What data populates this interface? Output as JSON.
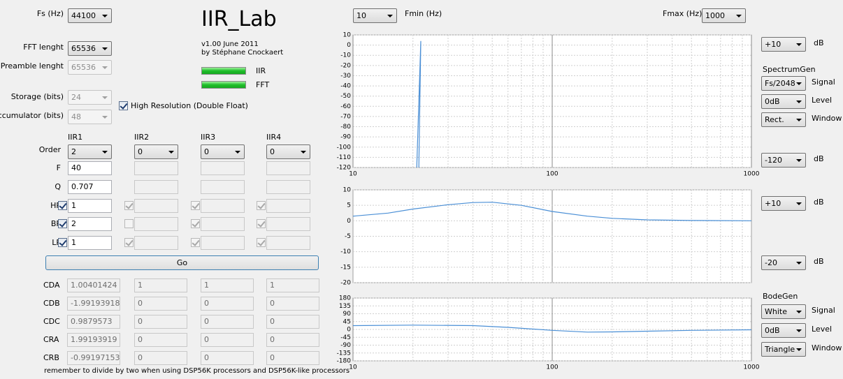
{
  "header": {
    "title": "IIR_Lab",
    "version": "v1.00 June 2011",
    "author": "by Stéphane Cnockaert",
    "indicators": [
      "IIR",
      "FFT"
    ]
  },
  "controls": {
    "fs": {
      "label": "Fs (Hz)",
      "value": "44100",
      "enabled": true
    },
    "fft_length": {
      "label": "FFT lenght",
      "value": "65536",
      "enabled": true
    },
    "preamble_length": {
      "label": "Preamble lenght",
      "value": "65536",
      "enabled": false
    },
    "storage": {
      "label": "Storage (bits)",
      "value": "24",
      "enabled": false
    },
    "accumulator": {
      "label": "Accumulator (bits)",
      "value": "48",
      "enabled": false
    },
    "high_resolution": {
      "label": "High Resolution (Double Float)",
      "checked": true
    },
    "fmin": {
      "label": "Fmin (Hz)",
      "value": "10"
    },
    "fmax": {
      "label": "Fmax (Hz)",
      "value": "1000"
    }
  },
  "filters": {
    "row_labels": {
      "order": "Order",
      "f": "F",
      "q": "Q",
      "hp": "HP",
      "bp": "BP",
      "lp": "LP"
    },
    "columns": [
      {
        "name": "IIR1",
        "order": "2",
        "f": "40",
        "q": "0.707",
        "hp": {
          "checked": true,
          "enabled": true,
          "value": "1"
        },
        "bp": {
          "checked": true,
          "enabled": true,
          "value": "2"
        },
        "lp": {
          "checked": true,
          "enabled": true,
          "value": "1"
        }
      },
      {
        "name": "IIR2",
        "order": "0",
        "hp": {
          "checked": true,
          "enabled": false
        },
        "bp": {
          "checked": false,
          "enabled": false
        },
        "lp": {
          "checked": true,
          "enabled": false
        }
      },
      {
        "name": "IIR3",
        "order": "0",
        "hp": {
          "checked": true,
          "enabled": false
        },
        "bp": {
          "checked": true,
          "enabled": false
        },
        "lp": {
          "checked": true,
          "enabled": false
        }
      },
      {
        "name": "IIR4",
        "order": "0",
        "hp": {
          "checked": true,
          "enabled": false
        },
        "bp": {
          "checked": true,
          "enabled": false
        },
        "lp": {
          "checked": true,
          "enabled": false
        }
      }
    ]
  },
  "go": "Go",
  "coefficients": {
    "labels": [
      "CDA",
      "CDB",
      "CDC",
      "CRA",
      "CRB"
    ],
    "columns": [
      [
        "1.00401424",
        "-1.99193918",
        "0.9879573",
        "1.99193919",
        "-0.99197153"
      ],
      [
        "1",
        "0",
        "0",
        "0",
        "0"
      ],
      [
        "1",
        "0",
        "0",
        "0",
        "0"
      ],
      [
        "1",
        "0",
        "0",
        "0",
        "0"
      ]
    ]
  },
  "note": "remember to divide by two when using DSP56K processors and DSP56K-like processors",
  "spectrum_controls": {
    "max": "+10",
    "max_unit": "dB",
    "generator": "SpectrumGen",
    "signal": {
      "value": "Fs/2048",
      "label": "Signal"
    },
    "level": {
      "value": "0dB",
      "label": "Level"
    },
    "window": {
      "value": "Rect.",
      "label": "Window"
    },
    "min": "-120",
    "min_unit": "dB"
  },
  "bode_controls": {
    "max": "+10",
    "max_unit": "dB",
    "min": "-20",
    "min_unit": "dB",
    "generator": "BodeGen",
    "signal": {
      "value": "White",
      "label": "Signal"
    },
    "level": {
      "value": "0dB",
      "label": "Level"
    },
    "window": {
      "value": "Triangle",
      "label": "Window"
    }
  },
  "chart_data": [
    {
      "type": "line",
      "x_scale": "log",
      "xlim": [
        10,
        1000
      ],
      "xticks": [
        10,
        100,
        1000
      ],
      "ylim": [
        -120,
        10
      ],
      "yticks": [
        10,
        0,
        -10,
        -20,
        -30,
        -40,
        -50,
        -60,
        -70,
        -80,
        -90,
        -100,
        -110,
        -120
      ],
      "grid": true,
      "color": "#4a8fd6",
      "x": [
        20.9,
        21.9,
        21.4
      ],
      "values": [
        -120,
        4,
        -120
      ]
    },
    {
      "type": "line",
      "x_scale": "log",
      "xlim": [
        10,
        1000
      ],
      "ylim": [
        -20,
        10
      ],
      "yticks": [
        10,
        5,
        0,
        -5,
        -10,
        -15,
        -20
      ],
      "grid": true,
      "color": "#4a8fd6",
      "x": [
        10,
        15,
        20,
        30,
        40,
        50,
        70,
        100,
        150,
        200,
        300,
        500,
        1000
      ],
      "values": [
        1.5,
        2.5,
        3.8,
        5.2,
        5.9,
        6,
        5,
        3,
        1.5,
        0.8,
        0.3,
        0.1,
        0
      ]
    },
    {
      "type": "line",
      "x_scale": "log",
      "xlim": [
        10,
        1000
      ],
      "xticks": [
        10,
        100,
        1000
      ],
      "ylim": [
        -180,
        180
      ],
      "yticks": [
        180,
        135,
        90,
        45,
        0,
        -45,
        -90,
        -135,
        -180
      ],
      "grid": true,
      "color": "#4a8fd6",
      "x": [
        10,
        20,
        40,
        60,
        100,
        150,
        200,
        300,
        500,
        1000
      ],
      "values": [
        22,
        25,
        22,
        12,
        -5,
        -15,
        -14,
        -10,
        -5,
        -2
      ]
    }
  ]
}
